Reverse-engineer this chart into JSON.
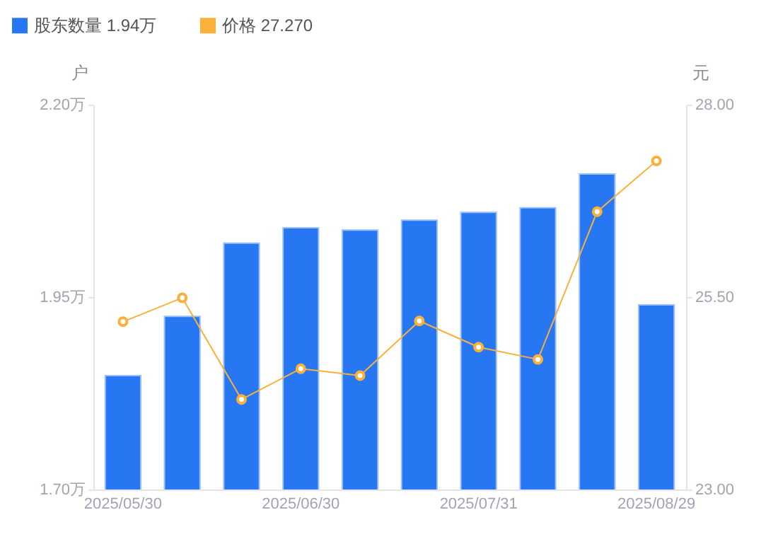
{
  "chart_data": {
    "type": "bar",
    "categories": [
      "2025/05/30",
      null,
      null,
      "2025/06/30",
      null,
      null,
      "2025/07/31",
      null,
      null,
      "2025/08/29"
    ],
    "series": [
      {
        "name": "股东数量 1.94万",
        "color": "#2777f2",
        "values": [
          1.848,
          1.925,
          2.02,
          2.04,
          2.037,
          2.05,
          2.06,
          2.066,
          2.11,
          1.94
        ]
      },
      {
        "name": "价格 27.270",
        "type": "line",
        "axis": "y2",
        "color": "#fbb03b",
        "marker": "circle",
        "values": [
          25.18,
          25.49,
          24.17,
          24.57,
          24.48,
          25.19,
          24.85,
          24.69,
          26.61,
          27.27
        ]
      }
    ],
    "ylabel": "户",
    "y2label": "元",
    "ylim": [
      1.7,
      2.2
    ],
    "yticks": [
      {
        "value": 1.7,
        "label": "1.70万"
      },
      {
        "value": 1.95,
        "label": "1.95万"
      },
      {
        "value": 2.2,
        "label": "2.20万"
      }
    ],
    "y2lim": [
      23,
      28
    ],
    "y2ticks": [
      {
        "value": 23,
        "label": "23.00"
      },
      {
        "value": 25.5,
        "label": "25.50"
      },
      {
        "value": 28,
        "label": "28.00"
      }
    ],
    "legend": "top left"
  }
}
